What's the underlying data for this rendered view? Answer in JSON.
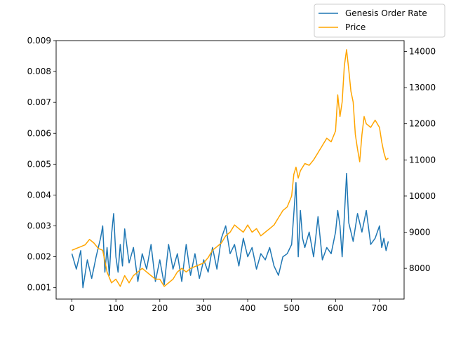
{
  "chart_data": {
    "type": "line",
    "title": "",
    "xlabel": "",
    "ylabel_left": "",
    "ylabel_right": "",
    "xlim": [
      -36,
      756
    ],
    "ylim_left": [
      0.00063,
      0.009
    ],
    "ylim_right": [
      7150,
      14300
    ],
    "x_ticks": [
      0,
      100,
      200,
      300,
      400,
      500,
      600,
      700
    ],
    "y_left_ticks": [
      "0.001",
      "0.002",
      "0.003",
      "0.004",
      "0.005",
      "0.006",
      "0.007",
      "0.008",
      "0.009"
    ],
    "y_left_tick_values": [
      0.001,
      0.002,
      0.003,
      0.004,
      0.005,
      0.006,
      0.007,
      0.008,
      0.009
    ],
    "y_right_ticks": [
      "8000",
      "9000",
      "10000",
      "11000",
      "12000",
      "13000",
      "14000"
    ],
    "y_right_tick_values": [
      8000,
      9000,
      10000,
      11000,
      12000,
      13000,
      14000
    ],
    "grid": false,
    "legend_position": "top-right",
    "series": [
      {
        "name": "Genesis Order Rate",
        "axis": "left",
        "color": "#1f77b4",
        "x": [
          0,
          10,
          20,
          25,
          35,
          45,
          55,
          65,
          70,
          75,
          80,
          85,
          90,
          95,
          100,
          105,
          110,
          115,
          120,
          130,
          140,
          150,
          160,
          170,
          180,
          190,
          200,
          210,
          220,
          230,
          240,
          250,
          260,
          270,
          280,
          290,
          300,
          310,
          320,
          330,
          340,
          350,
          360,
          370,
          380,
          390,
          400,
          410,
          420,
          430,
          440,
          450,
          460,
          470,
          480,
          490,
          500,
          505,
          510,
          515,
          520,
          525,
          530,
          540,
          550,
          560,
          570,
          580,
          590,
          600,
          605,
          610,
          615,
          620,
          625,
          630,
          640,
          650,
          660,
          670,
          680,
          690,
          700,
          705,
          710,
          715,
          720
        ],
        "values": [
          0.0021,
          0.0016,
          0.0022,
          0.001,
          0.0019,
          0.0013,
          0.002,
          0.0026,
          0.003,
          0.0015,
          0.0023,
          0.0014,
          0.0027,
          0.0034,
          0.002,
          0.0015,
          0.0024,
          0.0017,
          0.0029,
          0.0018,
          0.0023,
          0.0012,
          0.0021,
          0.0016,
          0.0024,
          0.0012,
          0.0019,
          0.0011,
          0.0024,
          0.0016,
          0.0021,
          0.0012,
          0.0024,
          0.0014,
          0.0021,
          0.0013,
          0.0019,
          0.0015,
          0.0023,
          0.0016,
          0.0026,
          0.003,
          0.0021,
          0.0024,
          0.0017,
          0.0026,
          0.002,
          0.0023,
          0.0016,
          0.0021,
          0.0019,
          0.0023,
          0.0017,
          0.0014,
          0.002,
          0.0021,
          0.0024,
          0.0034,
          0.0044,
          0.002,
          0.0035,
          0.0026,
          0.0023,
          0.0028,
          0.002,
          0.0033,
          0.0019,
          0.0023,
          0.0021,
          0.0028,
          0.0035,
          0.003,
          0.002,
          0.0033,
          0.0047,
          0.0031,
          0.0025,
          0.0034,
          0.0028,
          0.0035,
          0.0024,
          0.0026,
          0.003,
          0.0023,
          0.0026,
          0.0022,
          0.0025
        ]
      },
      {
        "name": "Price",
        "axis": "right",
        "color": "#ffa500",
        "x": [
          0,
          10,
          20,
          30,
          40,
          50,
          60,
          70,
          75,
          80,
          90,
          100,
          110,
          120,
          130,
          140,
          150,
          160,
          170,
          180,
          190,
          200,
          210,
          220,
          230,
          240,
          250,
          260,
          270,
          280,
          290,
          300,
          310,
          320,
          330,
          340,
          350,
          360,
          370,
          380,
          390,
          400,
          410,
          420,
          430,
          440,
          450,
          460,
          470,
          480,
          490,
          500,
          505,
          510,
          515,
          520,
          530,
          540,
          550,
          560,
          570,
          580,
          590,
          600,
          605,
          610,
          615,
          620,
          625,
          630,
          635,
          640,
          645,
          650,
          655,
          660,
          665,
          670,
          680,
          690,
          700,
          705,
          710,
          715,
          720
        ],
        "values": [
          8500,
          8550,
          8600,
          8650,
          8800,
          8700,
          8550,
          8500,
          8200,
          7900,
          7600,
          7700,
          7500,
          7800,
          7600,
          7800,
          7900,
          8000,
          7900,
          7800,
          7700,
          7700,
          7500,
          7600,
          7700,
          7900,
          8000,
          7900,
          8000,
          8050,
          8100,
          8150,
          8300,
          8500,
          8600,
          8700,
          8900,
          9000,
          9200,
          9100,
          9000,
          9200,
          9000,
          9100,
          8900,
          9000,
          9100,
          9200,
          9400,
          9600,
          9700,
          10000,
          10600,
          10800,
          10500,
          10700,
          10900,
          10850,
          11000,
          11200,
          11400,
          11600,
          11500,
          11800,
          12800,
          12200,
          12600,
          13600,
          14050,
          13500,
          12900,
          12600,
          11700,
          11300,
          10950,
          11700,
          12200,
          12000,
          11900,
          12100,
          11900,
          11500,
          11200,
          11000,
          11050
        ]
      }
    ]
  }
}
